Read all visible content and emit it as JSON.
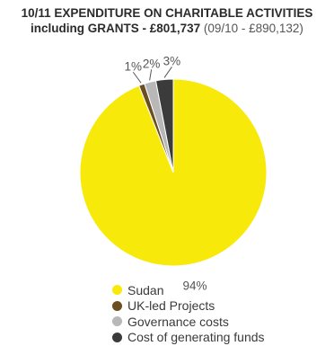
{
  "chart_data": {
    "type": "pie",
    "title_line1": "10/11 EXPENDITURE ON CHARITABLE ACTIVITIES",
    "title_line2_bold": "including GRANTS - £801,737",
    "title_line2_light": " (09/10 - £890,132)",
    "slices": [
      {
        "name": "Sudan",
        "value": 94,
        "label": "94%",
        "color": "#f7ea0b"
      },
      {
        "name": "UK-led Projects",
        "value": 1,
        "label": "1%",
        "color": "#6b4e22"
      },
      {
        "name": "Governance costs",
        "value": 2,
        "label": "2%",
        "color": "#b8b8b8"
      },
      {
        "name": "Cost of generating funds",
        "value": 3,
        "label": "3%",
        "color": "#3b3b3b"
      }
    ]
  }
}
